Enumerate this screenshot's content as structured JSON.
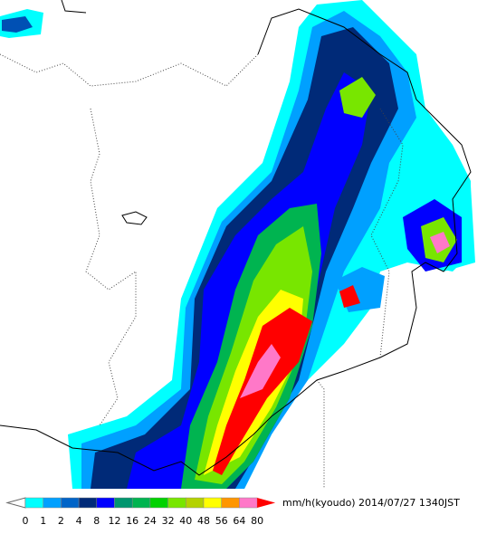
{
  "legend": {
    "labels": [
      0,
      1,
      2,
      4,
      8,
      12,
      16,
      24,
      32,
      40,
      48,
      56,
      64,
      80
    ],
    "colors": [
      "#00ffff",
      "#00a0ff",
      "#0064c8",
      "#002a78",
      "#0000ff",
      "#00966e",
      "#00b450",
      "#00d200",
      "#78e600",
      "#b4d200",
      "#ffff00",
      "#ff9600",
      "#ff78c8"
    ],
    "under_color": "#ffffff",
    "over_color": "#ff0000",
    "unit": "mm/h(kyoudo)"
  },
  "timestamp": "2014/07/27 1340JST"
}
